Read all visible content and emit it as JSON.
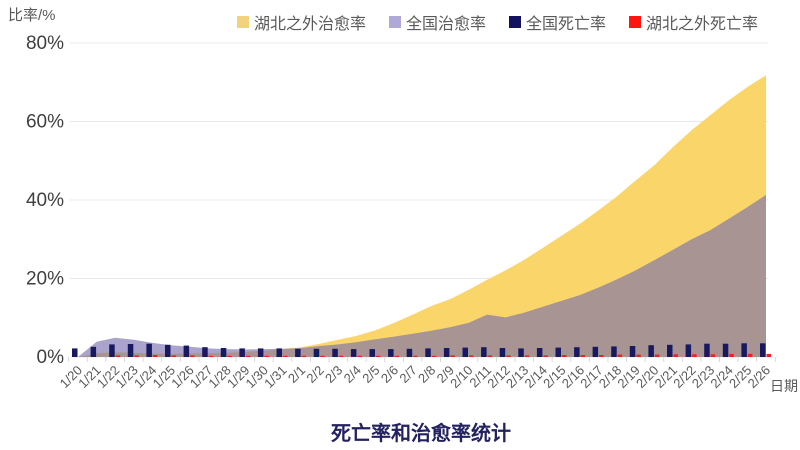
{
  "title": "死亡率和治愈率统计",
  "y_axis_title": "比率/%",
  "x_axis_title": "日期",
  "legend": [
    {
      "label": "湖北之外治愈率",
      "color": "#F2D27C"
    },
    {
      "label": "全国治愈率",
      "color": "#AEA9D6"
    },
    {
      "label": "全国死亡率",
      "color": "#12125E"
    },
    {
      "label": "湖北之外死亡率",
      "color": "#FF1410"
    }
  ],
  "chart_data": {
    "type": "area+bar combo",
    "title": "死亡率和治愈率统计",
    "xlabel": "日期",
    "ylabel": "比率/%",
    "ylim": [
      0,
      80
    ],
    "y_ticks": [
      "0%",
      "20%",
      "40%",
      "60%",
      "80%"
    ],
    "y_tick_values": [
      0,
      20,
      40,
      60,
      80
    ],
    "grid": "horizontal",
    "legend_position": "top",
    "categories": [
      "1/20",
      "1/21",
      "1/22",
      "1/23",
      "1/24",
      "1/25",
      "1/26",
      "1/27",
      "1/28",
      "1/29",
      "1/30",
      "1/31",
      "2/1",
      "2/2",
      "2/3",
      "2/4",
      "2/5",
      "2/6",
      "2/7",
      "2/8",
      "2/9",
      "2/10",
      "2/11",
      "2/12",
      "2/13",
      "2/14",
      "2/15",
      "2/16",
      "2/17",
      "2/18",
      "2/19",
      "2/20",
      "2/21",
      "2/22",
      "2/23",
      "2/24",
      "2/25",
      "2/26"
    ],
    "series": [
      {
        "name": "湖北之外治愈率",
        "type": "area",
        "color": "#FAD66A",
        "unit": "%",
        "values": [
          0,
          1.0,
          1.2,
          1.1,
          0.9,
          0.8,
          0.9,
          1.0,
          1.1,
          1.3,
          1.6,
          2.0,
          2.5,
          3.4,
          4.4,
          5.4,
          6.8,
          8.7,
          10.8,
          13.0,
          14.7,
          17.1,
          19.7,
          22.1,
          24.8,
          27.8,
          30.9,
          34.0,
          37.4,
          41.0,
          45.0,
          48.9,
          53.5,
          57.8,
          61.6,
          65.4,
          68.8,
          71.8
        ]
      },
      {
        "name": "全国治愈率",
        "type": "area",
        "color": "rgba(118,108,172,0.62)",
        "unit": "%",
        "values": [
          0,
          3.9,
          4.9,
          4.4,
          3.6,
          3.0,
          2.6,
          2.2,
          2.0,
          1.9,
          2.0,
          2.1,
          2.3,
          2.8,
          3.2,
          3.8,
          4.5,
          5.2,
          5.9,
          6.7,
          7.6,
          8.7,
          10.8,
          10.1,
          11.3,
          12.8,
          14.3,
          15.8,
          17.7,
          19.8,
          22.1,
          24.7,
          27.3,
          30.0,
          32.3,
          35.2,
          38.2,
          41.3
        ]
      },
      {
        "name": "全国死亡率",
        "type": "bar",
        "color": "#191960",
        "unit": "%",
        "values": [
          2.2,
          2.6,
          3.2,
          3.3,
          3.4,
          3.1,
          2.9,
          2.5,
          2.3,
          2.2,
          2.2,
          2.2,
          2.1,
          2.1,
          2.1,
          2.0,
          2.0,
          2.0,
          2.1,
          2.2,
          2.3,
          2.4,
          2.5,
          2.3,
          2.2,
          2.3,
          2.4,
          2.5,
          2.6,
          2.7,
          2.8,
          3.0,
          3.1,
          3.2,
          3.4,
          3.4,
          3.5,
          3.5
        ]
      },
      {
        "name": "湖北之外死亡率",
        "type": "bar",
        "color": "#E8241D",
        "unit": "%",
        "values": [
          0,
          0,
          0.4,
          0.4,
          0.5,
          0.4,
          0.4,
          0.3,
          0.3,
          0.3,
          0.3,
          0.3,
          0.3,
          0.3,
          0.3,
          0.3,
          0.3,
          0.3,
          0.3,
          0.3,
          0.4,
          0.4,
          0.4,
          0.4,
          0.4,
          0.4,
          0.5,
          0.5,
          0.5,
          0.6,
          0.6,
          0.6,
          0.7,
          0.7,
          0.7,
          0.8,
          0.8,
          0.8
        ]
      }
    ]
  },
  "style_colors": {
    "gridline": "#E8E8E8",
    "tick_mark": "#D9D9D9",
    "y_tick_text": "#3F3F3F",
    "x_tick_text": "#595959",
    "title_text": "#23225F"
  }
}
